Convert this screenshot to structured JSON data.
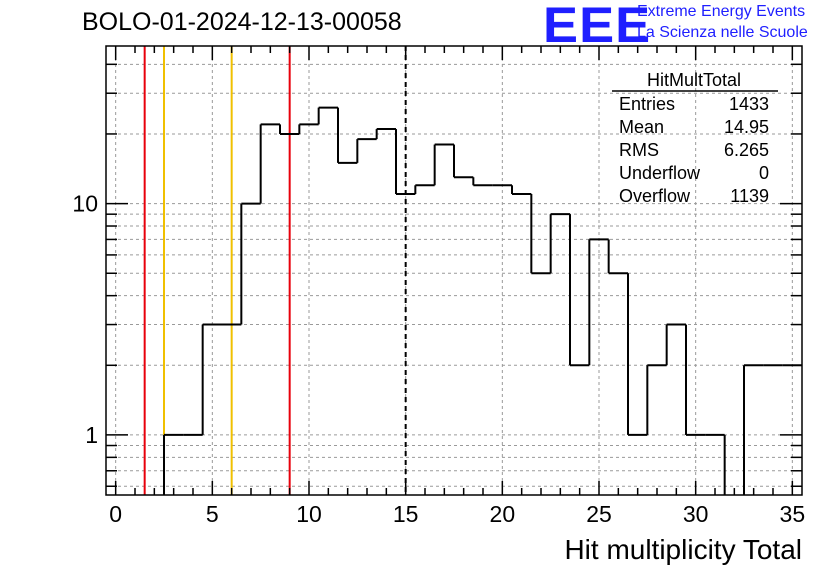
{
  "header": {
    "run_title": "BOLO-01-2024-12-13-00058"
  },
  "logo": {
    "mark": "EEE",
    "line1": "Extreme Energy Events",
    "line2": "La Scienza nelle Scuole",
    "color": "#1f1fff"
  },
  "stats": {
    "name": "HitMultTotal",
    "rows": [
      {
        "label": "Entries",
        "value": "1433"
      },
      {
        "label": "Mean",
        "value": "14.95"
      },
      {
        "label": "RMS",
        "value": "6.265"
      },
      {
        "label": "Underflow",
        "value": "0"
      },
      {
        "label": "Overflow",
        "value": "1139"
      }
    ]
  },
  "chart_data": {
    "type": "histogram",
    "xlabel": "Hit multiplicity Total",
    "ylabel": "",
    "xlim": [
      -0.5,
      35.5
    ],
    "ylim": [
      0.55,
      48
    ],
    "yscale": "log",
    "grid": true,
    "x_ticks": [
      0,
      5,
      10,
      15,
      20,
      25,
      30,
      35
    ],
    "x_minor_step": 1,
    "y_ticks": [
      1,
      10
    ],
    "bins": {
      "edges_start": 2.5,
      "width": 1,
      "values": [
        1,
        1,
        3,
        3,
        10,
        22,
        20,
        22,
        26,
        15,
        19,
        21,
        11,
        12,
        18,
        13,
        12,
        12,
        11,
        5,
        9,
        2,
        7,
        5,
        1,
        2,
        3,
        1,
        1,
        0,
        2,
        2,
        2
      ]
    },
    "vertical_lines": [
      {
        "x": 1.5,
        "color": "#e8000b",
        "style": "solid"
      },
      {
        "x": 2.5,
        "color": "#f0c000",
        "style": "solid"
      },
      {
        "x": 6.0,
        "color": "#f0c000",
        "style": "solid"
      },
      {
        "x": 9.0,
        "color": "#e8000b",
        "style": "solid"
      },
      {
        "x": 15.0,
        "color": "#000000",
        "style": "dashed"
      }
    ]
  }
}
